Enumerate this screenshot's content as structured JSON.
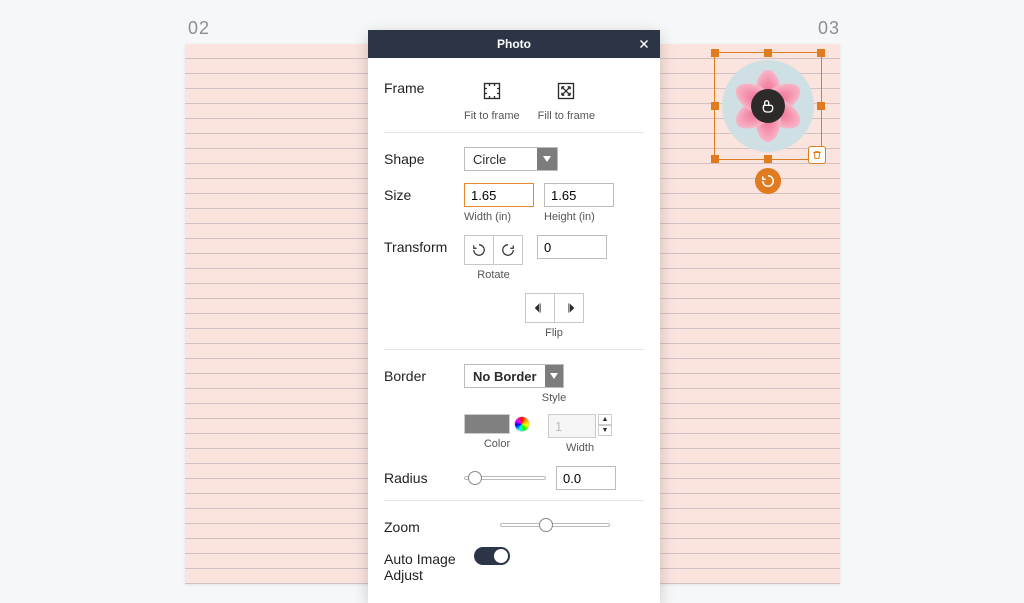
{
  "page_left": "02",
  "page_right": "03",
  "panel": {
    "title": "Photo",
    "frame": {
      "label": "Frame",
      "fit": "Fit to frame",
      "fill": "Fill to frame"
    },
    "shape": {
      "label": "Shape",
      "value": "Circle"
    },
    "size": {
      "label": "Size",
      "width": "1.65",
      "width_label": "Width (in)",
      "height": "1.65",
      "height_label": "Height (in)"
    },
    "transform": {
      "label": "Transform",
      "rotate_label": "Rotate",
      "angle": "0",
      "flip_label": "Flip"
    },
    "border": {
      "label": "Border",
      "style_value": "No Border",
      "style_label": "Style",
      "color_label": "Color",
      "color": "#808080",
      "width_value": "1",
      "width_label": "Width"
    },
    "radius": {
      "label": "Radius",
      "value": "0.0",
      "slider_pos_pct": 5
    },
    "zoom": {
      "label": "Zoom",
      "slider_pos_pct": 35
    },
    "auto": {
      "label": "Auto Image Adjust",
      "on": true
    }
  },
  "colors": {
    "accent_orange": "#e07b1f",
    "panel_header": "#2c3545",
    "notebook_bg": "#fbe3de"
  }
}
